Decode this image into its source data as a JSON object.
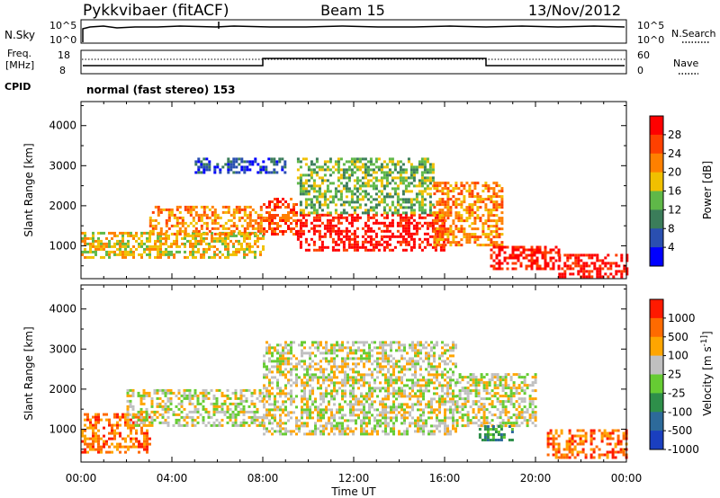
{
  "header": {
    "station": "Pykkvibaer (fitACF)",
    "beam": "Beam 15",
    "date": "13/Nov/2012"
  },
  "nsky_panel": {
    "left_label": "N.Sky",
    "right_label": "N.Search",
    "left_ticks": [
      "10^5",
      "10^0"
    ],
    "right_ticks": [
      "10^5",
      "10^0"
    ]
  },
  "freq_panel": {
    "left_label_1": "Freq.",
    "left_label_2": "[MHz]",
    "right_label": "Nave",
    "left_ticks": [
      "18",
      "8"
    ],
    "right_ticks": [
      "60",
      "0"
    ]
  },
  "cpid": {
    "label": "CPID",
    "value": "normal (fast stereo) 153"
  },
  "x_axis": {
    "label": "Time UT",
    "ticks": [
      "00:00",
      "04:00",
      "08:00",
      "12:00",
      "16:00",
      "20:00",
      "00:00"
    ]
  },
  "chart_data": [
    {
      "type": "heatmap",
      "title": "",
      "xlabel": "Time UT",
      "ylabel": "Slant Range [km]",
      "xlim_hours": [
        0,
        24
      ],
      "ylim": [
        180,
        4600
      ],
      "y_ticks": [
        1000,
        2000,
        3000,
        4000
      ],
      "colorbar": {
        "label": "Power [dB]",
        "ticks": [
          "4",
          "8",
          "12",
          "16",
          "20",
          "24",
          "28"
        ],
        "colors": [
          "#0000ff",
          "#2a4fb0",
          "#3b7d5a",
          "#5fb848",
          "#f0c000",
          "#ff8000",
          "#ff4000",
          "#ff0000"
        ]
      },
      "regions": [
        {
          "t0": 0.0,
          "t1": 8.0,
          "r0": 700,
          "r1": 1350,
          "level": 4
        },
        {
          "t0": 3.0,
          "t1": 8.0,
          "r0": 1300,
          "r1": 2000,
          "level": 5
        },
        {
          "t0": 8.0,
          "t1": 9.5,
          "r0": 1300,
          "r1": 2200,
          "level": 6
        },
        {
          "t0": 9.5,
          "t1": 16.0,
          "r0": 900,
          "r1": 1800,
          "level": 7
        },
        {
          "t0": 9.5,
          "t1": 15.5,
          "r0": 1800,
          "r1": 3200,
          "level": 3
        },
        {
          "t0": 15.5,
          "t1": 18.5,
          "r0": 1000,
          "r1": 2600,
          "level": 5
        },
        {
          "t0": 18.0,
          "t1": 21.0,
          "r0": 400,
          "r1": 1000,
          "level": 7
        },
        {
          "t0": 21.0,
          "t1": 24.0,
          "r0": 250,
          "r1": 800,
          "level": 7
        },
        {
          "t0": 5.0,
          "t1": 9.0,
          "r0": 2800,
          "r1": 3200,
          "level": 1
        }
      ]
    },
    {
      "type": "heatmap",
      "title": "",
      "xlabel": "Time UT",
      "ylabel": "Slant Range [km]",
      "xlim_hours": [
        0,
        24
      ],
      "ylim": [
        180,
        4600
      ],
      "y_ticks": [
        1000,
        2000,
        3000,
        4000
      ],
      "colorbar": {
        "label": "Velocity [m s^-1]",
        "ticks": [
          "1000",
          "500",
          "100",
          "25",
          "-25",
          "-100",
          "-500",
          "-1000"
        ],
        "colors": [
          "#1a3fbf",
          "#2d6a9a",
          "#2e8f4a",
          "#66cc33",
          "#c0c0c0",
          "#ffa500",
          "#ff6a00",
          "#ff1a00"
        ]
      },
      "regions": [
        {
          "t0": 0.0,
          "t1": 3.0,
          "r0": 400,
          "r1": 1400,
          "level": 6
        },
        {
          "t0": 2.0,
          "t1": 8.0,
          "r0": 1100,
          "r1": 2000,
          "level": 4
        },
        {
          "t0": 8.0,
          "t1": 16.5,
          "r0": 900,
          "r1": 3200,
          "level": 4
        },
        {
          "t0": 16.5,
          "t1": 20.0,
          "r0": 1100,
          "r1": 2400,
          "level": 4
        },
        {
          "t0": 17.5,
          "t1": 19.0,
          "r0": 700,
          "r1": 1100,
          "level": 2
        },
        {
          "t0": 20.5,
          "t1": 24.0,
          "r0": 300,
          "r1": 1000,
          "level": 6
        }
      ]
    }
  ]
}
